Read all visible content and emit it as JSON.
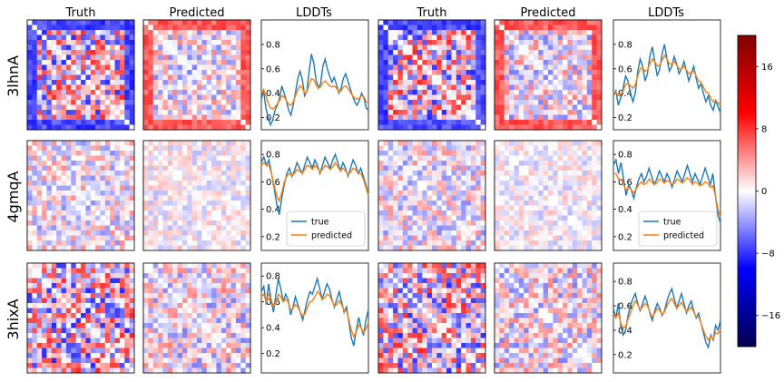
{
  "figure": {
    "column_titles": [
      "Truth",
      "Predicted",
      "LDDTs",
      "Truth",
      "Predicted",
      "LDDTs"
    ],
    "row_labels": [
      "3lhnA",
      "4gmqA",
      "3hixA"
    ]
  },
  "colorbar": {
    "ticks": [
      16,
      8,
      0,
      -8,
      -16
    ],
    "range": [
      -20,
      20
    ],
    "colormap": "seismic",
    "colors": [
      "#00004c",
      "#0000ff",
      "#ffffff",
      "#ff0000",
      "#800000"
    ]
  },
  "legend": {
    "entries": [
      "true",
      "predicted"
    ],
    "colors": {
      "true": "#1f77b4",
      "predicted": "#ff7f0e"
    }
  },
  "chart_data": [
    {
      "type": "line",
      "panel": "3lhnA left",
      "yticks": [
        0.2,
        0.4,
        0.6,
        0.8
      ],
      "ylim": [
        0.1,
        1.0
      ],
      "series": [
        {
          "name": "true",
          "values": [
            0.35,
            0.42,
            0.28,
            0.2,
            0.14,
            0.18,
            0.26,
            0.3,
            0.36,
            0.46,
            0.4,
            0.34,
            0.26,
            0.22,
            0.3,
            0.41,
            0.52,
            0.58,
            0.51,
            0.38,
            0.42,
            0.58,
            0.72,
            0.65,
            0.51,
            0.44,
            0.48,
            0.62,
            0.68,
            0.6,
            0.54,
            0.49,
            0.53,
            0.47,
            0.4,
            0.44,
            0.52,
            0.56,
            0.5,
            0.44,
            0.38,
            0.33,
            0.3,
            0.34,
            0.4,
            0.36,
            0.28,
            0.26
          ]
        },
        {
          "name": "predicted",
          "values": [
            0.4,
            0.43,
            0.38,
            0.32,
            0.28,
            0.27,
            0.29,
            0.31,
            0.34,
            0.38,
            0.37,
            0.34,
            0.31,
            0.3,
            0.33,
            0.38,
            0.43,
            0.46,
            0.44,
            0.4,
            0.41,
            0.47,
            0.52,
            0.51,
            0.47,
            0.44,
            0.45,
            0.49,
            0.5,
            0.48,
            0.46,
            0.45,
            0.46,
            0.44,
            0.41,
            0.42,
            0.45,
            0.46,
            0.44,
            0.41,
            0.38,
            0.36,
            0.35,
            0.36,
            0.38,
            0.37,
            0.33,
            0.32
          ]
        }
      ]
    },
    {
      "type": "line",
      "panel": "3lhnA right",
      "yticks": [
        0.2,
        0.4,
        0.6,
        0.8
      ],
      "ylim": [
        0.1,
        1.0
      ],
      "series": [
        {
          "name": "true",
          "values": [
            0.38,
            0.42,
            0.3,
            0.36,
            0.44,
            0.54,
            0.5,
            0.4,
            0.33,
            0.4,
            0.58,
            0.68,
            0.62,
            0.5,
            0.56,
            0.7,
            0.78,
            0.66,
            0.54,
            0.6,
            0.72,
            0.8,
            0.68,
            0.58,
            0.62,
            0.7,
            0.64,
            0.56,
            0.6,
            0.66,
            0.58,
            0.5,
            0.56,
            0.62,
            0.52,
            0.44,
            0.48,
            0.4,
            0.33,
            0.38,
            0.3,
            0.26,
            0.34,
            0.29,
            0.24
          ]
        },
        {
          "name": "predicted",
          "values": [
            0.4,
            0.41,
            0.38,
            0.39,
            0.42,
            0.47,
            0.48,
            0.46,
            0.44,
            0.47,
            0.54,
            0.6,
            0.61,
            0.58,
            0.59,
            0.64,
            0.68,
            0.66,
            0.62,
            0.63,
            0.67,
            0.71,
            0.68,
            0.64,
            0.64,
            0.66,
            0.63,
            0.6,
            0.6,
            0.62,
            0.59,
            0.56,
            0.57,
            0.58,
            0.54,
            0.5,
            0.49,
            0.45,
            0.41,
            0.4,
            0.36,
            0.33,
            0.34,
            0.32,
            0.3
          ]
        }
      ]
    },
    {
      "type": "line",
      "panel": "4gmqA left",
      "yticks": [
        0.2,
        0.4,
        0.6,
        0.8
      ],
      "ylim": [
        0.1,
        0.9
      ],
      "series": [
        {
          "name": "true",
          "values": [
            0.74,
            0.78,
            0.72,
            0.76,
            0.66,
            0.56,
            0.44,
            0.36,
            0.48,
            0.58,
            0.66,
            0.7,
            0.64,
            0.68,
            0.74,
            0.7,
            0.66,
            0.72,
            0.78,
            0.74,
            0.7,
            0.76,
            0.72,
            0.66,
            0.72,
            0.78,
            0.74,
            0.7,
            0.76,
            0.8,
            0.74,
            0.68,
            0.74,
            0.7,
            0.64,
            0.7,
            0.76,
            0.72,
            0.66,
            0.7,
            0.64,
            0.58,
            0.5
          ]
        },
        {
          "name": "predicted",
          "values": [
            0.72,
            0.74,
            0.72,
            0.72,
            0.66,
            0.58,
            0.5,
            0.46,
            0.52,
            0.6,
            0.64,
            0.66,
            0.65,
            0.66,
            0.69,
            0.68,
            0.66,
            0.69,
            0.72,
            0.71,
            0.69,
            0.72,
            0.7,
            0.67,
            0.69,
            0.72,
            0.71,
            0.69,
            0.71,
            0.74,
            0.71,
            0.68,
            0.7,
            0.68,
            0.65,
            0.67,
            0.7,
            0.69,
            0.66,
            0.66,
            0.62,
            0.56,
            0.5
          ]
        }
      ]
    },
    {
      "type": "line",
      "panel": "4gmqA right",
      "yticks": [
        0.2,
        0.4,
        0.6,
        0.8
      ],
      "ylim": [
        0.1,
        0.9
      ],
      "series": [
        {
          "name": "true",
          "values": [
            0.72,
            0.76,
            0.66,
            0.74,
            0.62,
            0.5,
            0.58,
            0.54,
            0.48,
            0.56,
            0.62,
            0.66,
            0.6,
            0.64,
            0.7,
            0.64,
            0.58,
            0.62,
            0.68,
            0.64,
            0.6,
            0.66,
            0.62,
            0.56,
            0.62,
            0.68,
            0.64,
            0.6,
            0.66,
            0.72,
            0.66,
            0.6,
            0.66,
            0.62,
            0.58,
            0.64,
            0.7,
            0.64,
            0.58,
            0.66,
            0.5,
            0.36,
            0.3
          ]
        },
        {
          "name": "predicted",
          "values": [
            0.66,
            0.66,
            0.62,
            0.62,
            0.58,
            0.54,
            0.56,
            0.54,
            0.52,
            0.55,
            0.58,
            0.6,
            0.58,
            0.59,
            0.62,
            0.6,
            0.58,
            0.59,
            0.62,
            0.61,
            0.59,
            0.61,
            0.6,
            0.58,
            0.59,
            0.62,
            0.61,
            0.59,
            0.61,
            0.63,
            0.61,
            0.58,
            0.6,
            0.59,
            0.57,
            0.58,
            0.6,
            0.59,
            0.56,
            0.57,
            0.5,
            0.4,
            0.34
          ]
        }
      ]
    },
    {
      "type": "line",
      "panel": "3hixA left",
      "yticks": [
        0.2,
        0.4,
        0.6,
        0.8
      ],
      "ylim": [
        0.05,
        0.9
      ],
      "series": [
        {
          "name": "true",
          "values": [
            0.68,
            0.72,
            0.58,
            0.74,
            0.62,
            0.52,
            0.66,
            0.78,
            0.7,
            0.6,
            0.66,
            0.62,
            0.5,
            0.56,
            0.64,
            0.58,
            0.52,
            0.46,
            0.54,
            0.62,
            0.68,
            0.66,
            0.72,
            0.78,
            0.7,
            0.62,
            0.68,
            0.74,
            0.7,
            0.62,
            0.56,
            0.62,
            0.68,
            0.6,
            0.52,
            0.56,
            0.44,
            0.32,
            0.26,
            0.38,
            0.48,
            0.4,
            0.34,
            0.46,
            0.54
          ]
        },
        {
          "name": "predicted",
          "values": [
            0.64,
            0.66,
            0.6,
            0.66,
            0.62,
            0.56,
            0.6,
            0.66,
            0.64,
            0.6,
            0.62,
            0.6,
            0.54,
            0.55,
            0.58,
            0.56,
            0.52,
            0.49,
            0.51,
            0.56,
            0.6,
            0.61,
            0.64,
            0.68,
            0.66,
            0.62,
            0.63,
            0.66,
            0.65,
            0.61,
            0.57,
            0.58,
            0.61,
            0.58,
            0.53,
            0.53,
            0.46,
            0.38,
            0.33,
            0.37,
            0.42,
            0.4,
            0.36,
            0.39,
            0.44
          ]
        }
      ]
    },
    {
      "type": "line",
      "panel": "3hixA right",
      "yticks": [
        0.2,
        0.4,
        0.6,
        0.8
      ],
      "ylim": [
        0.05,
        0.95
      ],
      "series": [
        {
          "name": "true",
          "values": [
            0.58,
            0.5,
            0.62,
            0.44,
            0.36,
            0.4,
            0.52,
            0.6,
            0.66,
            0.7,
            0.62,
            0.56,
            0.62,
            0.68,
            0.62,
            0.54,
            0.48,
            0.56,
            0.62,
            0.58,
            0.52,
            0.56,
            0.64,
            0.7,
            0.74,
            0.66,
            0.58,
            0.64,
            0.7,
            0.62,
            0.54,
            0.6,
            0.64,
            0.56,
            0.5,
            0.54,
            0.46,
            0.38,
            0.3,
            0.26,
            0.36,
            0.32,
            0.44,
            0.4,
            0.48
          ]
        },
        {
          "name": "predicted",
          "values": [
            0.54,
            0.5,
            0.54,
            0.46,
            0.42,
            0.43,
            0.49,
            0.54,
            0.6,
            0.64,
            0.61,
            0.57,
            0.59,
            0.62,
            0.6,
            0.55,
            0.51,
            0.54,
            0.58,
            0.56,
            0.53,
            0.55,
            0.6,
            0.64,
            0.66,
            0.62,
            0.58,
            0.6,
            0.63,
            0.59,
            0.55,
            0.57,
            0.59,
            0.55,
            0.51,
            0.51,
            0.46,
            0.4,
            0.35,
            0.32,
            0.35,
            0.33,
            0.38,
            0.37,
            0.4
          ]
        }
      ]
    }
  ]
}
